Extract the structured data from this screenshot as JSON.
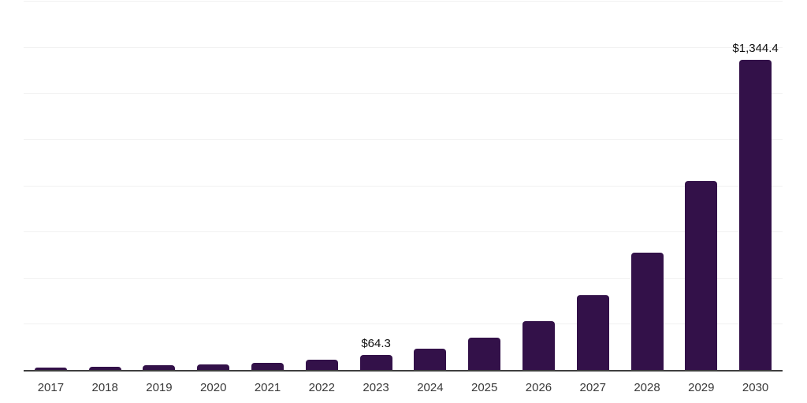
{
  "chart_data": {
    "type": "bar",
    "title": "",
    "xlabel": "",
    "ylabel": "",
    "categories": [
      "2017",
      "2018",
      "2019",
      "2020",
      "2021",
      "2022",
      "2023",
      "2024",
      "2025",
      "2026",
      "2027",
      "2028",
      "2029",
      "2030"
    ],
    "values": [
      11,
      14.5,
      20,
      25.5,
      32,
      45.5,
      64.3,
      93.5,
      139,
      211,
      324,
      508,
      818,
      1344.4
    ],
    "value_labels": {
      "2023": "$64.3",
      "2030": "$1,344.4"
    },
    "ylim": [
      0,
      1600
    ],
    "gridline_interval": 200,
    "grid": true,
    "legend": false,
    "colors": {
      "bar": "#331149",
      "axis": "#3f3f3f",
      "gridline": "#f1f1f1",
      "tick_label": "#3a3a3a",
      "value_label": "#0f0f0f",
      "background": "#ffffff"
    }
  }
}
